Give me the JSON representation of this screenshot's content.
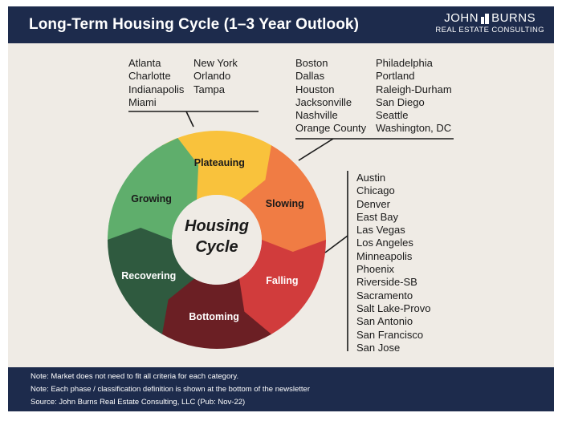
{
  "header": {
    "title": "Long-Term Housing Cycle (1–3 Year Outlook)",
    "logo_top_left": "JOHN",
    "logo_top_right": "BURNS",
    "logo_bottom": "REAL ESTATE CONSULTING"
  },
  "cycle": {
    "center_line1": "Housing",
    "center_line2": "Cycle",
    "phases": [
      {
        "label": "Plateauing",
        "color": "#f9c23c"
      },
      {
        "label": "Slowing",
        "color": "#f07c44"
      },
      {
        "label": "Falling",
        "color": "#d13c3c"
      },
      {
        "label": "Bottoming",
        "color": "#6b1f24"
      },
      {
        "label": "Recovering",
        "color": "#2f5a3f"
      },
      {
        "label": "Growing",
        "color": "#5fae6c"
      }
    ]
  },
  "plateauing_markets": {
    "col1": [
      "Atlanta",
      "Charlotte",
      "Indianapolis",
      "Miami"
    ],
    "col2": [
      "New York",
      "Orlando",
      "Tampa"
    ]
  },
  "slowing_markets": {
    "col1": [
      "Boston",
      "Dallas",
      "Houston",
      "Jacksonville",
      "Nashville",
      "Orange County"
    ],
    "col2": [
      "Philadelphia",
      "Portland",
      "Raleigh-Durham",
      "San Diego",
      "Seattle",
      "Washington, DC"
    ]
  },
  "falling_markets": [
    "Austin",
    "Chicago",
    "Denver",
    "East Bay",
    "Las Vegas",
    "Los Angeles",
    "Minneapolis",
    "Phoenix",
    "Riverside-SB",
    "Sacramento",
    "Salt Lake-Provo",
    "San Antonio",
    "San Francisco",
    "San Jose"
  ],
  "footer": {
    "notes": [
      "Note: Market does not need to fit all criteria for each category.",
      "Note: Each phase / classification definition is shown at the bottom of the newsletter",
      "Source: John Burns Real Estate Consulting, LLC (Pub: Nov-22)"
    ]
  }
}
